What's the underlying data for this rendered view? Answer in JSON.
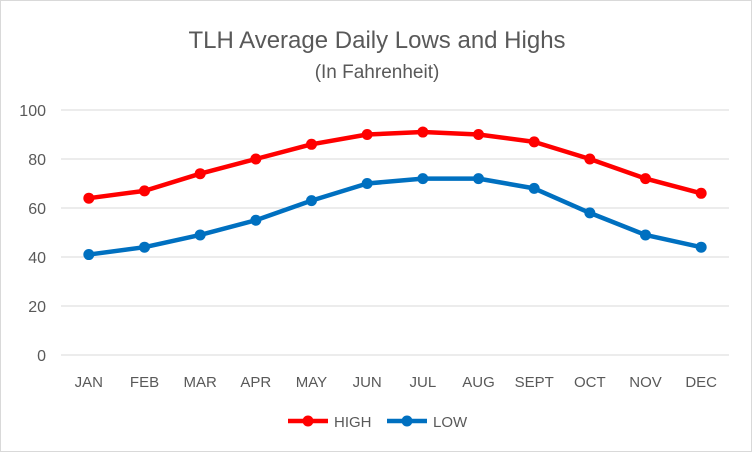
{
  "chart_data": {
    "type": "line",
    "title": "TLH Average Daily Lows and Highs",
    "subtitle": "(In Fahrenheit)",
    "xlabel": "",
    "ylabel": "",
    "categories": [
      "JAN",
      "FEB",
      "MAR",
      "APR",
      "MAY",
      "JUN",
      "JUL",
      "AUG",
      "SEPT",
      "OCT",
      "NOV",
      "DEC"
    ],
    "ylim": [
      0,
      100
    ],
    "yticks": [
      0,
      20,
      40,
      60,
      80,
      100
    ],
    "grid": true,
    "legend_position": "bottom",
    "series": [
      {
        "name": "HIGH",
        "color": "#ff0000",
        "values": [
          64,
          67,
          74,
          80,
          86,
          90,
          91,
          90,
          87,
          80,
          72,
          66
        ]
      },
      {
        "name": "LOW",
        "color": "#0070c0",
        "values": [
          41,
          44,
          49,
          55,
          63,
          70,
          72,
          72,
          68,
          58,
          49,
          44
        ]
      }
    ]
  }
}
